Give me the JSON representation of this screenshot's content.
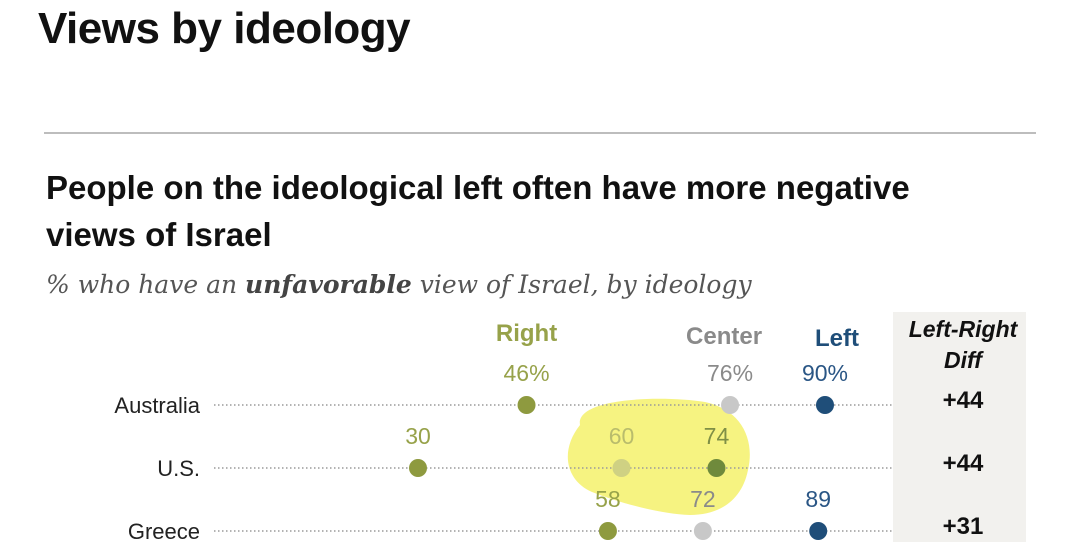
{
  "header": {
    "title": "Views by ideology"
  },
  "chart_data": {
    "type": "dot",
    "title": "People on the ideological left often have more negative views of Israel",
    "subtitle_pre": "% who have an ",
    "subtitle_bold": "unfavorable",
    "subtitle_post": " view of Israel, by ideology",
    "xlim": [
      0,
      100
    ],
    "series": [
      {
        "name": "Right",
        "color": "#8e9a3f"
      },
      {
        "name": "Center",
        "color": "#bdbdbd"
      },
      {
        "name": "Left",
        "color": "#1f4e79"
      }
    ],
    "diff_header_line1": "Left-Right",
    "diff_header_line2": "Diff",
    "rows": [
      {
        "country": "Australia",
        "right": 46,
        "center": 76,
        "left": 90,
        "right_label": "46%",
        "center_label": "76%",
        "left_label": "90%",
        "diff": "+44"
      },
      {
        "country": "U.S.",
        "right": 30,
        "center": 60,
        "left": 74,
        "right_label": "30",
        "center_label": "60",
        "left_label": "74",
        "diff": "+44"
      },
      {
        "country": "Greece",
        "right": 58,
        "center": 72,
        "left": 89,
        "right_label": "58",
        "center_label": "72",
        "left_label": "89",
        "diff": "+31"
      }
    ],
    "colors": {
      "right_dot": "#8e9a3f",
      "right_text": "#97a24a",
      "center_dot": "#c8c8c8",
      "center_text": "#8a8a8a",
      "left_dot": "#1f4e79",
      "left_text": "#2a5685",
      "center_dot_us": "#cfd183",
      "center_text_us": "#b9bc6c",
      "left_dot_us": "#6f8a3c",
      "left_text_us": "#7f8f46",
      "highlight": "#f6f27a"
    }
  }
}
